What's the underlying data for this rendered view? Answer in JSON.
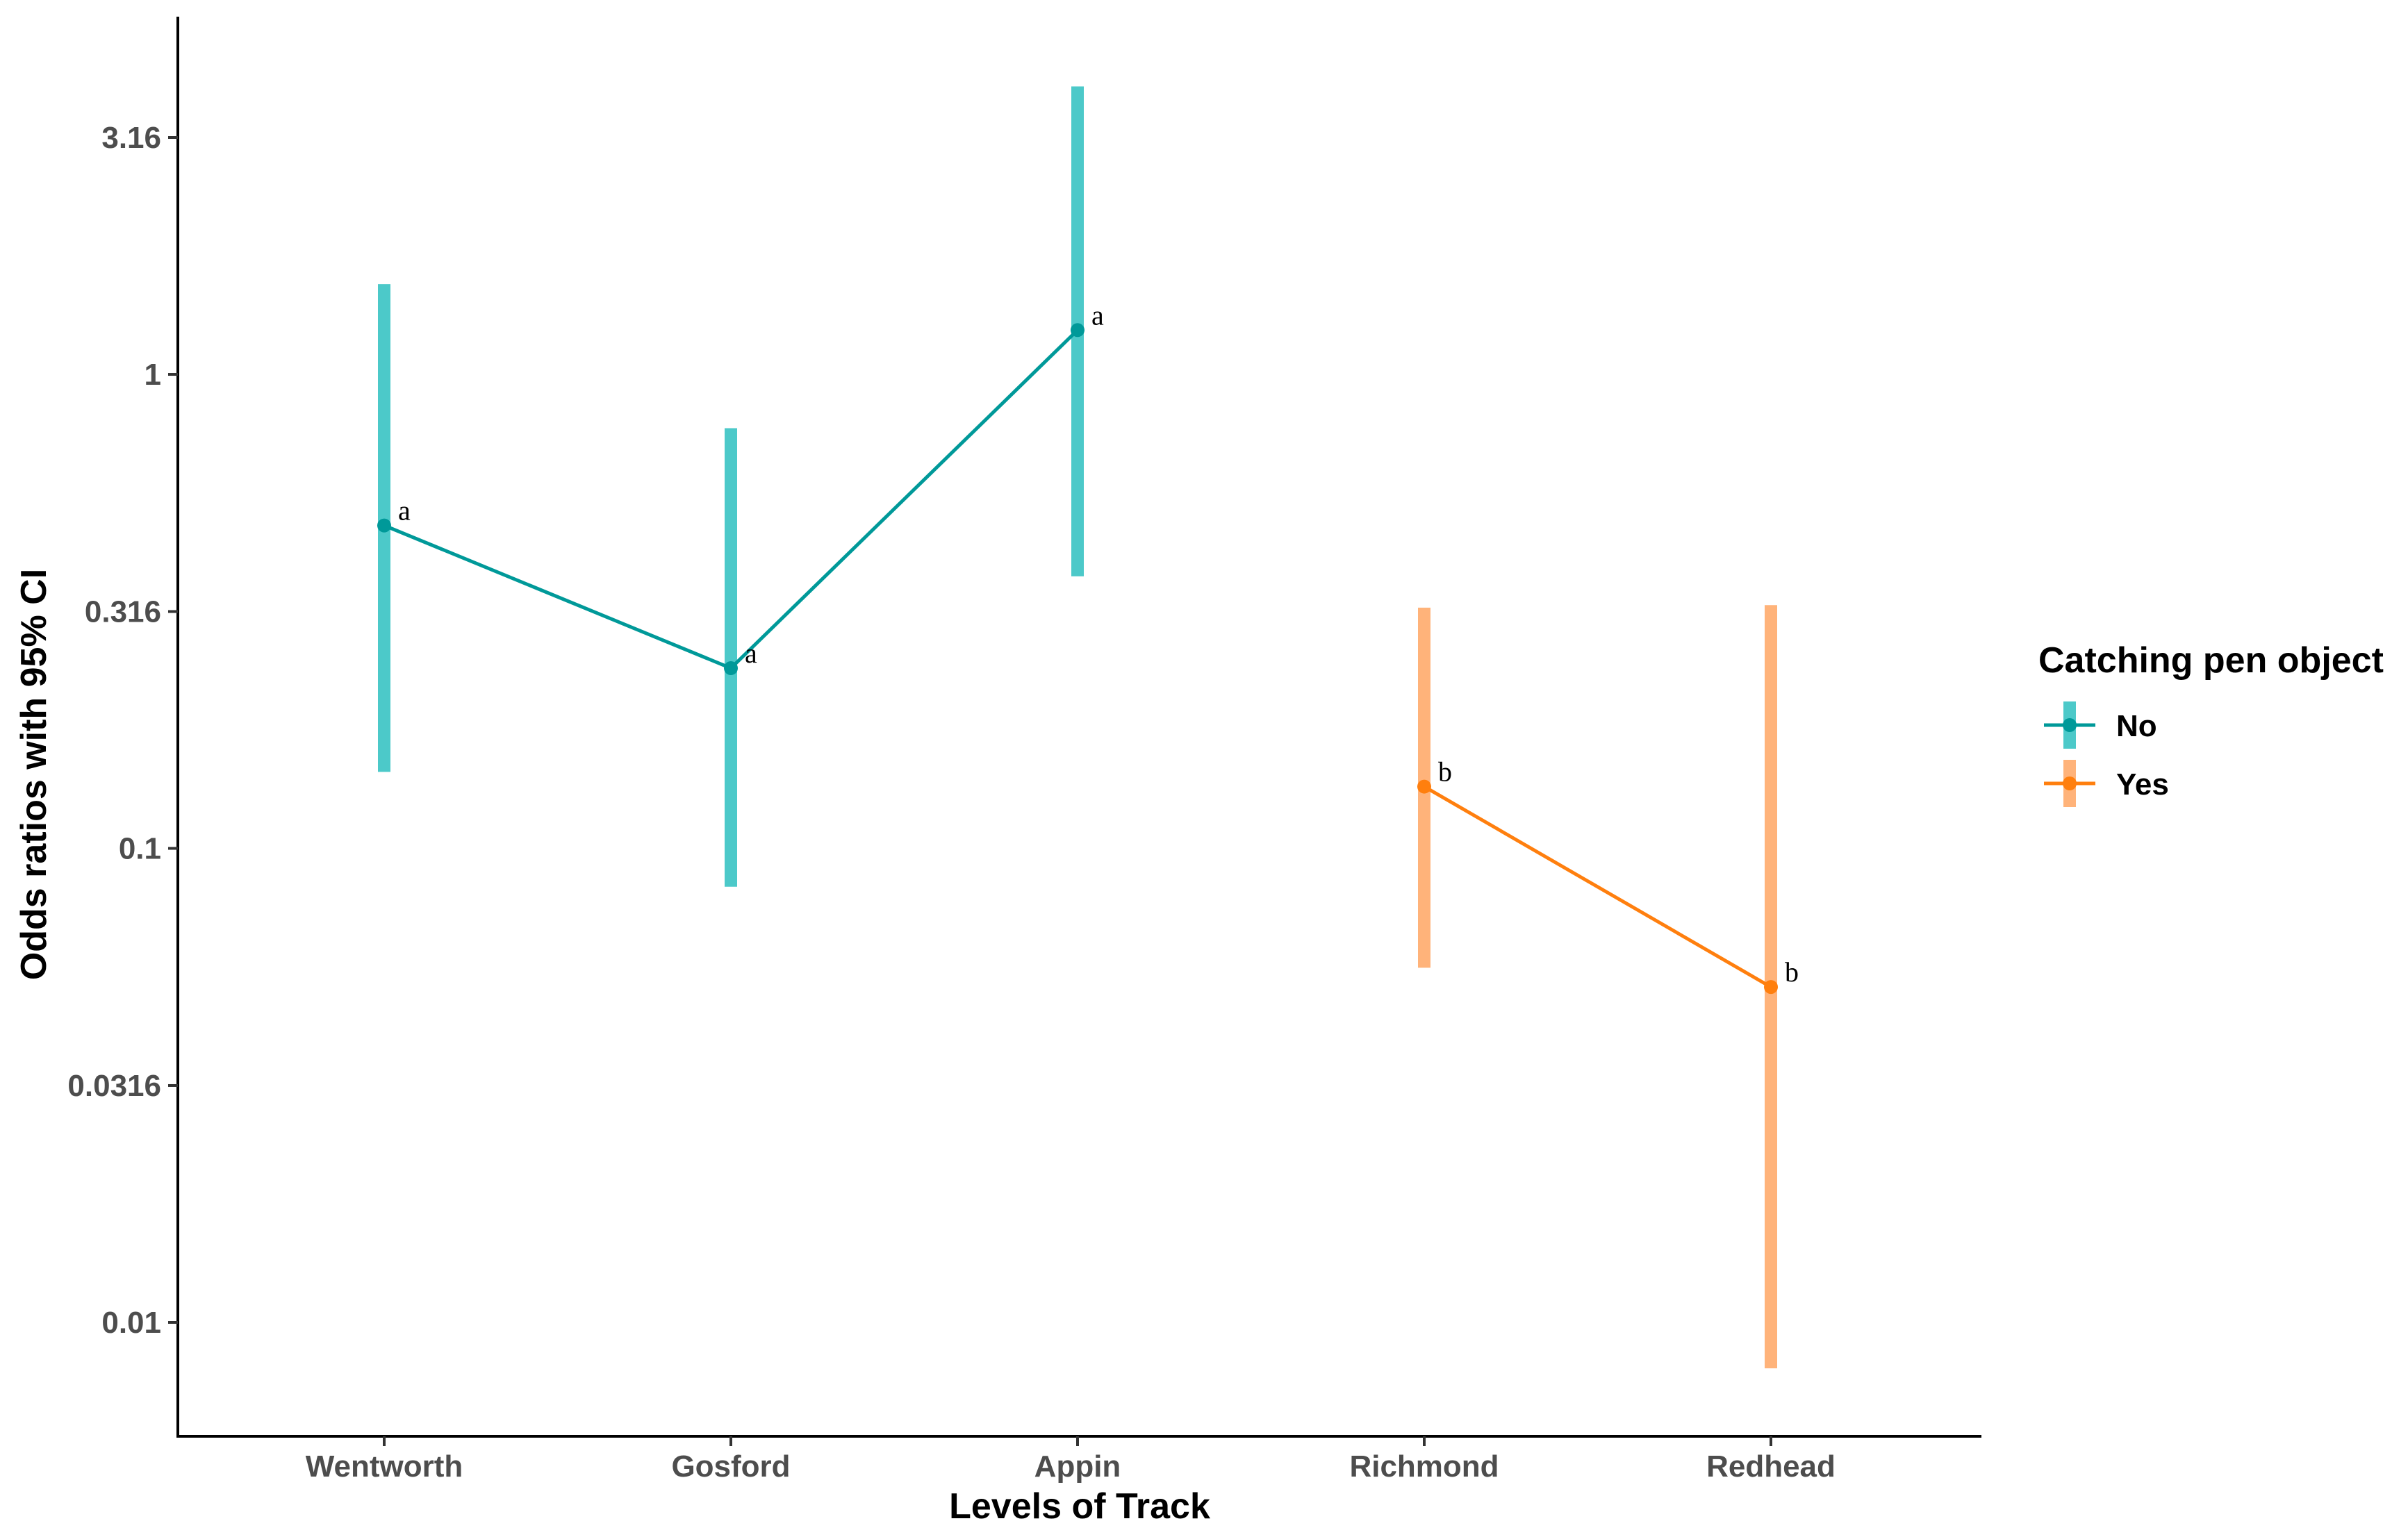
{
  "chart_data": {
    "type": "line",
    "xlabel": "Levels of Track",
    "ylabel": "Odds ratios with 95% CI",
    "y_scale": "log10",
    "ylim": [
      0.0047,
      5.4
    ],
    "yticks": [
      0.01,
      0.0316,
      0.1,
      0.316,
      1,
      3.16
    ],
    "ytick_labels": [
      "0.01",
      "0.0316",
      "0.1",
      "0.316",
      "1",
      "3.16"
    ],
    "categories": [
      "Wentworth",
      "Gosford",
      "Appin",
      "Richmond",
      "Redhead"
    ],
    "grid": false,
    "legend_position": "right",
    "legend": {
      "title": "Catching pen object",
      "entries": [
        "No",
        "Yes"
      ]
    },
    "series": [
      {
        "name": "No",
        "color": "#009999",
        "ci_color": "#4CC9C9",
        "points": [
          {
            "x": "Wentworth",
            "y": 0.48,
            "lower": 0.145,
            "upper": 1.55,
            "label": "a"
          },
          {
            "x": "Gosford",
            "y": 0.24,
            "lower": 0.083,
            "upper": 0.77,
            "label": "a"
          },
          {
            "x": "Appin",
            "y": 1.24,
            "lower": 0.375,
            "upper": 4.05,
            "label": "a"
          }
        ]
      },
      {
        "name": "Yes",
        "color": "#FF7F0E",
        "ci_color": "#FFB37A",
        "points": [
          {
            "x": "Richmond",
            "y": 0.135,
            "lower": 0.056,
            "upper": 0.322,
            "label": "b"
          },
          {
            "x": "Redhead",
            "y": 0.051,
            "lower": 0.008,
            "upper": 0.326,
            "label": "b"
          }
        ]
      }
    ]
  }
}
